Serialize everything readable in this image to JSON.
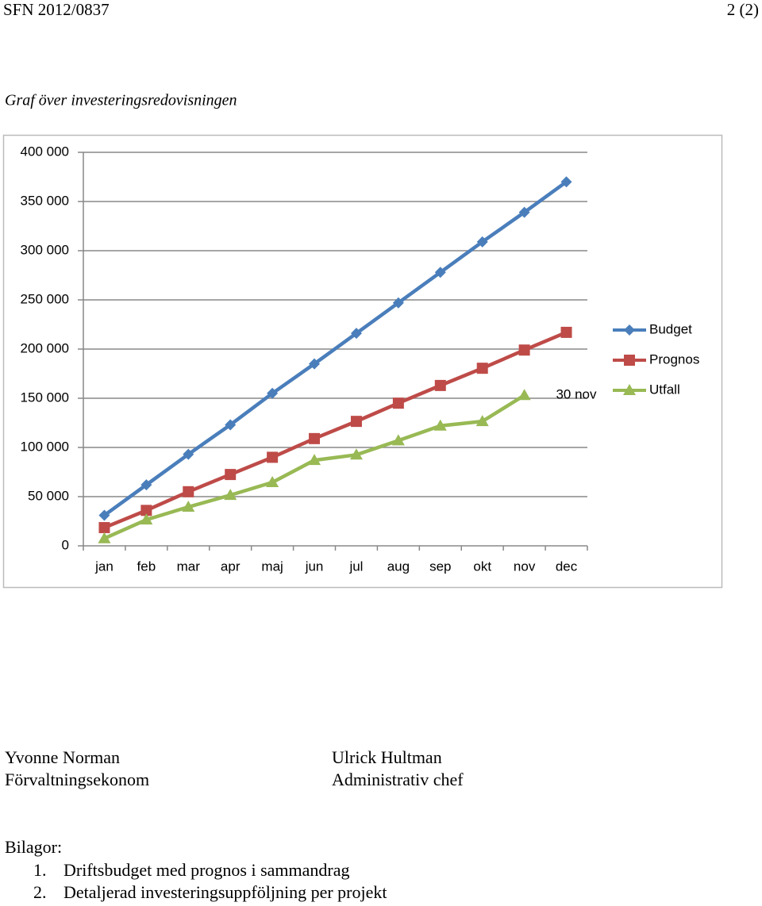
{
  "header": {
    "left": "SFN 2012/0837",
    "right": "2 (2)"
  },
  "heading": "Graf över investeringsredovisningen",
  "chart_data": {
    "type": "line",
    "categories": [
      "jan",
      "feb",
      "mar",
      "apr",
      "maj",
      "jun",
      "jul",
      "aug",
      "sep",
      "okt",
      "nov",
      "dec"
    ],
    "series": [
      {
        "name": "Budget",
        "color": "#4a7ebb",
        "marker": "diamond",
        "values": [
          31000,
          62000,
          93000,
          123000,
          155000,
          185000,
          216000,
          247000,
          278000,
          309000,
          339000,
          370000
        ]
      },
      {
        "name": "Prognos",
        "color": "#be4b48",
        "marker": "square",
        "values": [
          18500,
          36000,
          55000,
          72500,
          90000,
          109000,
          126500,
          145000,
          163000,
          180500,
          199000,
          217000
        ]
      },
      {
        "name": "Utfall",
        "color": "#98b954",
        "marker": "triangle",
        "values": [
          7500,
          26500,
          39500,
          51500,
          64500,
          87000,
          92500,
          107000,
          122000,
          126500,
          153000,
          null
        ]
      }
    ],
    "ylim": [
      0,
      400000
    ],
    "yticks": [
      0,
      {
        "value": 50000,
        "label": "50 000"
      },
      {
        "value": 100000,
        "label": "100 000"
      },
      {
        "value": 150000,
        "label": "150 000"
      },
      {
        "value": 200000,
        "label": "200 000"
      },
      {
        "value": 250000,
        "label": "250 000"
      },
      {
        "value": 300000,
        "label": "300 000"
      },
      {
        "value": 350000,
        "label": "350 000"
      },
      {
        "value": 400000,
        "label": "400 000"
      }
    ],
    "grid": true,
    "legend": "right",
    "annotation": "30 nov"
  },
  "signatures": [
    {
      "name": "Yvonne Norman",
      "title": "Förvaltningsekonom"
    },
    {
      "name": "Ulrick Hultman",
      "title": "Administrativ chef"
    }
  ],
  "attachments": {
    "title": "Bilagor:",
    "items": [
      {
        "number": "1.",
        "text": "Driftsbudget med prognos i sammandrag"
      },
      {
        "number": "2.",
        "text": "Detaljerad investeringsuppföljning per projekt"
      }
    ]
  }
}
